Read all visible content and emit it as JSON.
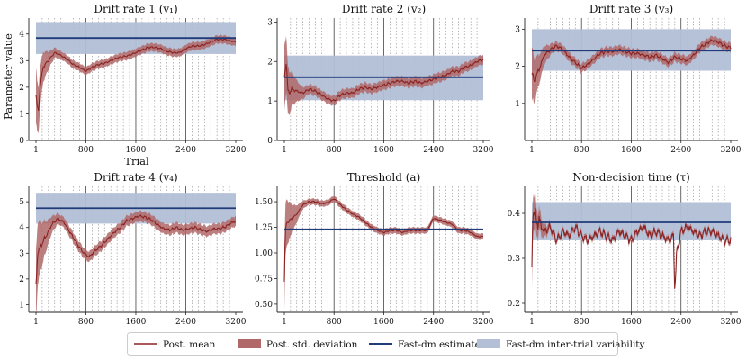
{
  "figure": {
    "ylabel": "Parameter value",
    "xlabel": "Trial",
    "colors": {
      "mean": "#8b2323",
      "band": "#b06868",
      "estimate": "#1f3b7a",
      "variability": "#b2bfd6",
      "axis": "#222222",
      "grid_dotted": "#9a9a9a",
      "grid_solid": "#444444"
    }
  },
  "legend": {
    "items": [
      {
        "label": "Post. mean",
        "kind": "line"
      },
      {
        "label": "Post. std. deviation",
        "kind": "patch-red"
      },
      {
        "label": "Fast-dm estimate",
        "kind": "line-blue"
      },
      {
        "label": "Fast-dm inter-trial variability",
        "kind": "patch-blue"
      }
    ]
  },
  "chart_data": [
    {
      "type": "line",
      "title": "Drift rate 1 (v₁)",
      "xlim": [
        1,
        3200
      ],
      "xticks": [
        1,
        800,
        1600,
        2400,
        3200
      ],
      "ylim": [
        0,
        4.6
      ],
      "yticks": [
        0,
        1,
        2,
        3,
        4
      ],
      "ytick_labels": [
        "0",
        "1",
        "2",
        "3",
        "4"
      ],
      "estimate": 3.85,
      "variability": [
        3.25,
        4.45
      ],
      "mean_points": [
        [
          1,
          1.7
        ],
        [
          20,
          1.3
        ],
        [
          40,
          1.1
        ],
        [
          70,
          2.1
        ],
        [
          120,
          2.8
        ],
        [
          200,
          3.0
        ],
        [
          300,
          3.3
        ],
        [
          400,
          3.2
        ],
        [
          500,
          3.05
        ],
        [
          600,
          2.85
        ],
        [
          700,
          2.75
        ],
        [
          800,
          2.6
        ],
        [
          900,
          2.75
        ],
        [
          1000,
          2.85
        ],
        [
          1100,
          2.9
        ],
        [
          1200,
          3.0
        ],
        [
          1300,
          3.1
        ],
        [
          1400,
          3.15
        ],
        [
          1500,
          3.2
        ],
        [
          1600,
          3.3
        ],
        [
          1700,
          3.4
        ],
        [
          1800,
          3.5
        ],
        [
          1900,
          3.5
        ],
        [
          2000,
          3.45
        ],
        [
          2100,
          3.35
        ],
        [
          2200,
          3.3
        ],
        [
          2300,
          3.3
        ],
        [
          2400,
          3.45
        ],
        [
          2500,
          3.55
        ],
        [
          2600,
          3.55
        ],
        [
          2700,
          3.6
        ],
        [
          2800,
          3.7
        ],
        [
          2900,
          3.8
        ],
        [
          3000,
          3.8
        ],
        [
          3100,
          3.75
        ],
        [
          3200,
          3.7
        ]
      ],
      "band_start": 0.9,
      "band_end": 0.15,
      "noise": 0.04
    },
    {
      "type": "line",
      "title": "Drift rate 2 (v₂)",
      "xlim": [
        1,
        3200
      ],
      "xticks": [
        1,
        800,
        1600,
        2400,
        3200
      ],
      "ylim": [
        0,
        3.1
      ],
      "yticks": [
        0,
        1,
        2,
        3
      ],
      "ytick_labels": [
        "0",
        "1",
        "2",
        "3"
      ],
      "estimate": 1.6,
      "variability": [
        1.02,
        2.15
      ],
      "mean_points": [
        [
          1,
          1.6
        ],
        [
          30,
          2.0
        ],
        [
          60,
          1.2
        ],
        [
          120,
          1.3
        ],
        [
          200,
          1.25
        ],
        [
          300,
          1.2
        ],
        [
          400,
          1.3
        ],
        [
          500,
          1.25
        ],
        [
          600,
          1.15
        ],
        [
          700,
          1.05
        ],
        [
          800,
          1.0
        ],
        [
          900,
          1.15
        ],
        [
          1000,
          1.2
        ],
        [
          1100,
          1.2
        ],
        [
          1200,
          1.3
        ],
        [
          1300,
          1.35
        ],
        [
          1400,
          1.3
        ],
        [
          1500,
          1.35
        ],
        [
          1600,
          1.4
        ],
        [
          1700,
          1.45
        ],
        [
          1800,
          1.5
        ],
        [
          1900,
          1.5
        ],
        [
          2000,
          1.45
        ],
        [
          2100,
          1.5
        ],
        [
          2200,
          1.45
        ],
        [
          2300,
          1.5
        ],
        [
          2400,
          1.55
        ],
        [
          2500,
          1.6
        ],
        [
          2600,
          1.65
        ],
        [
          2700,
          1.75
        ],
        [
          2800,
          1.75
        ],
        [
          2900,
          1.85
        ],
        [
          3000,
          1.9
        ],
        [
          3100,
          2.0
        ],
        [
          3200,
          2.05
        ]
      ],
      "band_start": 0.7,
      "band_end": 0.12,
      "noise": 0.04
    },
    {
      "type": "line",
      "title": "Drift rate 3 (v₃)",
      "xlim": [
        1,
        3200
      ],
      "xticks": [
        1,
        800,
        1600,
        2400,
        3200
      ],
      "ylim": [
        0,
        3.3
      ],
      "yticks": [
        1,
        2,
        3
      ],
      "ytick_labels": [
        "1",
        "2",
        "3"
      ],
      "estimate": 2.42,
      "variability": [
        1.88,
        3.0
      ],
      "mean_points": [
        [
          1,
          1.8
        ],
        [
          40,
          1.6
        ],
        [
          100,
          1.85
        ],
        [
          200,
          2.3
        ],
        [
          300,
          2.45
        ],
        [
          400,
          2.55
        ],
        [
          500,
          2.45
        ],
        [
          600,
          2.25
        ],
        [
          700,
          2.1
        ],
        [
          800,
          1.95
        ],
        [
          900,
          2.05
        ],
        [
          1000,
          2.2
        ],
        [
          1100,
          2.35
        ],
        [
          1200,
          2.4
        ],
        [
          1300,
          2.4
        ],
        [
          1400,
          2.45
        ],
        [
          1500,
          2.4
        ],
        [
          1600,
          2.35
        ],
        [
          1700,
          2.35
        ],
        [
          1800,
          2.3
        ],
        [
          1900,
          2.25
        ],
        [
          2000,
          2.3
        ],
        [
          2100,
          2.2
        ],
        [
          2200,
          2.1
        ],
        [
          2300,
          2.25
        ],
        [
          2400,
          2.2
        ],
        [
          2500,
          2.15
        ],
        [
          2600,
          2.3
        ],
        [
          2700,
          2.5
        ],
        [
          2800,
          2.6
        ],
        [
          2900,
          2.7
        ],
        [
          3000,
          2.65
        ],
        [
          3100,
          2.55
        ],
        [
          3200,
          2.5
        ]
      ],
      "band_start": 0.6,
      "band_end": 0.12,
      "noise": 0.05
    },
    {
      "type": "line",
      "title": "Drift rate 4 (v₄)",
      "xlim": [
        1,
        3200
      ],
      "xticks": [
        1,
        800,
        1600,
        2400,
        3200
      ],
      "ylim": [
        0.7,
        5.6
      ],
      "yticks": [
        1,
        2,
        3,
        4,
        5
      ],
      "ytick_labels": [
        "1",
        "2",
        "3",
        "4",
        "5"
      ],
      "estimate": 4.75,
      "variability": [
        4.15,
        5.35
      ],
      "mean_points": [
        [
          1,
          1.8
        ],
        [
          30,
          3.0
        ],
        [
          80,
          3.3
        ],
        [
          150,
          3.6
        ],
        [
          250,
          4.1
        ],
        [
          350,
          4.35
        ],
        [
          450,
          4.2
        ],
        [
          550,
          3.8
        ],
        [
          650,
          3.4
        ],
        [
          750,
          3.05
        ],
        [
          800,
          2.95
        ],
        [
          850,
          2.85
        ],
        [
          950,
          3.1
        ],
        [
          1050,
          3.3
        ],
        [
          1150,
          3.55
        ],
        [
          1250,
          3.8
        ],
        [
          1350,
          4.0
        ],
        [
          1450,
          4.25
        ],
        [
          1550,
          4.35
        ],
        [
          1650,
          4.45
        ],
        [
          1750,
          4.4
        ],
        [
          1850,
          4.3
        ],
        [
          1950,
          4.1
        ],
        [
          2050,
          3.95
        ],
        [
          2150,
          3.9
        ],
        [
          2250,
          4.0
        ],
        [
          2350,
          3.9
        ],
        [
          2450,
          3.95
        ],
        [
          2550,
          4.0
        ],
        [
          2650,
          3.9
        ],
        [
          2750,
          3.85
        ],
        [
          2850,
          3.95
        ],
        [
          2950,
          3.95
        ],
        [
          3050,
          4.05
        ],
        [
          3150,
          4.2
        ],
        [
          3200,
          4.25
        ]
      ],
      "band_start": 1.2,
      "band_end": 0.2,
      "noise": 0.06
    },
    {
      "type": "line",
      "title": "Threshold (a)",
      "xlim": [
        1,
        3200
      ],
      "xticks": [
        1,
        800,
        1600,
        2400,
        3200
      ],
      "ylim": [
        0.42,
        1.65
      ],
      "yticks": [
        0.5,
        0.75,
        1.0,
        1.25,
        1.5
      ],
      "ytick_labels": [
        "0.50",
        "0.75",
        "1.00",
        "1.25",
        "1.50"
      ],
      "estimate": 1.23,
      "variability": null,
      "mean_points": [
        [
          1,
          0.72
        ],
        [
          15,
          1.2
        ],
        [
          40,
          1.3
        ],
        [
          100,
          1.32
        ],
        [
          200,
          1.38
        ],
        [
          300,
          1.47
        ],
        [
          400,
          1.5
        ],
        [
          500,
          1.5
        ],
        [
          600,
          1.48
        ],
        [
          700,
          1.49
        ],
        [
          800,
          1.53
        ],
        [
          900,
          1.47
        ],
        [
          1000,
          1.42
        ],
        [
          1100,
          1.38
        ],
        [
          1200,
          1.35
        ],
        [
          1300,
          1.3
        ],
        [
          1400,
          1.25
        ],
        [
          1500,
          1.22
        ],
        [
          1600,
          1.2
        ],
        [
          1700,
          1.22
        ],
        [
          1800,
          1.22
        ],
        [
          1900,
          1.2
        ],
        [
          2000,
          1.22
        ],
        [
          2100,
          1.22
        ],
        [
          2200,
          1.22
        ],
        [
          2300,
          1.22
        ],
        [
          2400,
          1.34
        ],
        [
          2500,
          1.32
        ],
        [
          2600,
          1.3
        ],
        [
          2700,
          1.28
        ],
        [
          2800,
          1.22
        ],
        [
          2900,
          1.22
        ],
        [
          3000,
          1.2
        ],
        [
          3100,
          1.16
        ],
        [
          3200,
          1.16
        ]
      ],
      "band_start": 0.25,
      "band_end": 0.03,
      "noise": 0.008
    },
    {
      "type": "line",
      "title": "Non-decision time (τ)",
      "xlim": [
        1,
        3200
      ],
      "xticks": [
        1,
        800,
        1600,
        2400,
        3200
      ],
      "ylim": [
        0.18,
        0.46
      ],
      "yticks": [
        0.2,
        0.3,
        0.4
      ],
      "ytick_labels": [
        "0.2",
        "0.3",
        "0.4"
      ],
      "estimate": 0.38,
      "variability": [
        0.34,
        0.425
      ],
      "mean_points": [
        [
          1,
          0.27
        ],
        [
          15,
          0.42
        ],
        [
          50,
          0.39
        ],
        [
          120,
          0.38
        ],
        [
          200,
          0.36
        ],
        [
          300,
          0.37
        ],
        [
          400,
          0.34
        ],
        [
          500,
          0.36
        ],
        [
          600,
          0.35
        ],
        [
          700,
          0.37
        ],
        [
          800,
          0.35
        ],
        [
          900,
          0.34
        ],
        [
          1000,
          0.35
        ],
        [
          1100,
          0.36
        ],
        [
          1200,
          0.35
        ],
        [
          1300,
          0.34
        ],
        [
          1400,
          0.36
        ],
        [
          1500,
          0.35
        ],
        [
          1600,
          0.34
        ],
        [
          1700,
          0.36
        ],
        [
          1800,
          0.37
        ],
        [
          1900,
          0.35
        ],
        [
          2000,
          0.36
        ],
        [
          2100,
          0.35
        ],
        [
          2200,
          0.34
        ],
        [
          2280,
          0.35
        ],
        [
          2300,
          0.23
        ],
        [
          2330,
          0.31
        ],
        [
          2400,
          0.36
        ],
        [
          2500,
          0.37
        ],
        [
          2600,
          0.36
        ],
        [
          2700,
          0.35
        ],
        [
          2800,
          0.36
        ],
        [
          2900,
          0.36
        ],
        [
          3000,
          0.35
        ],
        [
          3100,
          0.34
        ],
        [
          3200,
          0.34
        ]
      ],
      "band_start": 0.04,
      "band_end": 0.006,
      "noise": 0.012
    }
  ]
}
